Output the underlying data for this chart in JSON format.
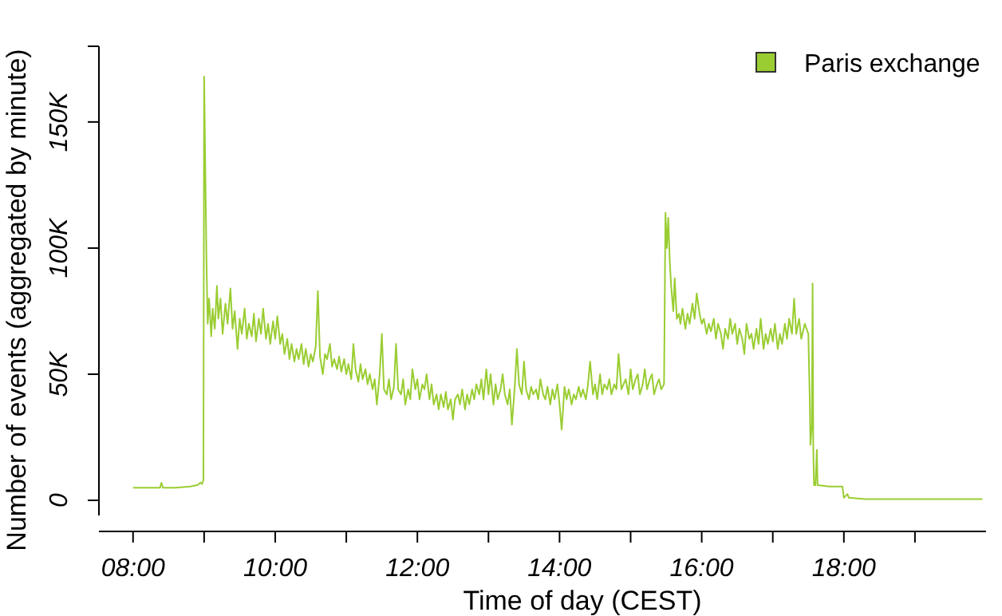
{
  "chart_data": {
    "type": "line",
    "xlabel": "Time of day (CEST)",
    "ylabel": "Number of events (aggregated by minute)",
    "xlim": [
      7.52,
      20.0
    ],
    "ylim": [
      -6000,
      180000
    ],
    "xticks": [
      {
        "value": 8,
        "label": "08:00"
      },
      {
        "value": 9,
        "label": null
      },
      {
        "value": 10,
        "label": "10:00"
      },
      {
        "value": 11,
        "label": null
      },
      {
        "value": 12,
        "label": "12:00"
      },
      {
        "value": 13,
        "label": null
      },
      {
        "value": 14,
        "label": "14:00"
      },
      {
        "value": 15,
        "label": null
      },
      {
        "value": 16,
        "label": "16:00"
      },
      {
        "value": 17,
        "label": null
      },
      {
        "value": 18,
        "label": "18:00"
      },
      {
        "value": 19,
        "label": null
      }
    ],
    "yticks": [
      0,
      {
        "value": 50000,
        "label": "50K"
      },
      {
        "value": 100000,
        "label": "100K"
      },
      {
        "value": 150000,
        "label": "150K"
      },
      {
        "value": 180000,
        "label": null
      }
    ],
    "legend": "top right",
    "grid": false,
    "marker": "none",
    "line_style": "solid",
    "series": [
      {
        "name": "Paris exchange",
        "color": "#9acd32",
        "x": [
          8.0,
          8.2,
          8.38,
          8.4,
          8.42,
          8.6,
          8.8,
          8.9,
          8.95,
          8.97,
          8.99,
          9.0,
          9.017,
          9.033,
          9.05,
          9.07,
          9.1,
          9.12,
          9.15,
          9.18,
          9.2,
          9.23,
          9.26,
          9.3,
          9.33,
          9.37,
          9.4,
          9.43,
          9.47,
          9.5,
          9.53,
          9.57,
          9.6,
          9.63,
          9.67,
          9.7,
          9.73,
          9.77,
          9.8,
          9.83,
          9.87,
          9.9,
          9.93,
          9.97,
          10.0,
          10.03,
          10.07,
          10.1,
          10.13,
          10.17,
          10.2,
          10.23,
          10.27,
          10.3,
          10.33,
          10.37,
          10.4,
          10.43,
          10.47,
          10.5,
          10.53,
          10.57,
          10.6,
          10.63,
          10.67,
          10.7,
          10.73,
          10.77,
          10.8,
          10.83,
          10.87,
          10.9,
          10.93,
          10.97,
          11.0,
          11.03,
          11.07,
          11.1,
          11.13,
          11.17,
          11.2,
          11.23,
          11.27,
          11.3,
          11.33,
          11.37,
          11.4,
          11.43,
          11.47,
          11.5,
          11.53,
          11.57,
          11.6,
          11.63,
          11.67,
          11.7,
          11.73,
          11.77,
          11.8,
          11.83,
          11.87,
          11.9,
          11.93,
          11.97,
          12.0,
          12.03,
          12.07,
          12.1,
          12.13,
          12.17,
          12.2,
          12.23,
          12.27,
          12.3,
          12.33,
          12.37,
          12.4,
          12.43,
          12.47,
          12.5,
          12.53,
          12.57,
          12.6,
          12.63,
          12.67,
          12.7,
          12.73,
          12.77,
          12.8,
          12.83,
          12.87,
          12.9,
          12.93,
          12.97,
          13.0,
          13.03,
          13.07,
          13.1,
          13.13,
          13.17,
          13.2,
          13.23,
          13.27,
          13.3,
          13.33,
          13.37,
          13.4,
          13.43,
          13.47,
          13.5,
          13.53,
          13.57,
          13.6,
          13.63,
          13.67,
          13.7,
          13.73,
          13.77,
          13.8,
          13.83,
          13.87,
          13.9,
          13.93,
          13.97,
          14.0,
          14.03,
          14.07,
          14.1,
          14.13,
          14.17,
          14.2,
          14.23,
          14.27,
          14.3,
          14.33,
          14.37,
          14.4,
          14.43,
          14.47,
          14.5,
          14.53,
          14.57,
          14.6,
          14.63,
          14.67,
          14.7,
          14.73,
          14.77,
          14.8,
          14.83,
          14.87,
          14.9,
          14.93,
          14.97,
          15.0,
          15.03,
          15.07,
          15.1,
          15.13,
          15.17,
          15.2,
          15.23,
          15.27,
          15.3,
          15.33,
          15.37,
          15.4,
          15.43,
          15.47,
          15.49,
          15.51,
          15.53,
          15.55,
          15.57,
          15.6,
          15.62,
          15.65,
          15.68,
          15.7,
          15.73,
          15.77,
          15.8,
          15.83,
          15.87,
          15.9,
          15.93,
          15.97,
          16.0,
          16.03,
          16.07,
          16.1,
          16.13,
          16.17,
          16.2,
          16.23,
          16.27,
          16.3,
          16.33,
          16.37,
          16.4,
          16.43,
          16.47,
          16.5,
          16.53,
          16.57,
          16.6,
          16.63,
          16.67,
          16.7,
          16.73,
          16.77,
          16.8,
          16.83,
          16.87,
          16.9,
          16.93,
          16.97,
          17.0,
          17.03,
          17.07,
          17.1,
          17.13,
          17.17,
          17.2,
          17.23,
          17.27,
          17.3,
          17.33,
          17.37,
          17.4,
          17.45,
          17.5,
          17.52,
          17.53,
          17.55,
          17.56,
          17.57,
          17.58,
          17.6,
          17.62,
          17.63,
          17.8,
          17.98,
          18.0,
          18.05,
          18.07,
          18.3,
          19.0,
          19.95
        ],
        "values": [
          5000,
          5000,
          5000,
          7000,
          5000,
          5000,
          5500,
          6000,
          7000,
          6500,
          8000,
          168000,
          130000,
          95000,
          70000,
          80000,
          65000,
          76000,
          68000,
          85000,
          72000,
          80000,
          66000,
          78000,
          70000,
          84000,
          68000,
          75000,
          60000,
          72000,
          66000,
          76000,
          64000,
          70000,
          65000,
          74000,
          63000,
          72000,
          66000,
          76000,
          64000,
          70000,
          62000,
          71000,
          64000,
          73000,
          62000,
          66000,
          58000,
          64000,
          56000,
          62000,
          55000,
          60000,
          56000,
          62000,
          54000,
          60000,
          53000,
          58000,
          55000,
          61000,
          83000,
          57000,
          50000,
          58000,
          56000,
          62000,
          53000,
          56000,
          52000,
          57000,
          51000,
          56000,
          50000,
          54000,
          48000,
          62000,
          52000,
          47000,
          54000,
          48000,
          52000,
          46000,
          50000,
          44000,
          48000,
          38000,
          50000,
          66000,
          44000,
          42000,
          48000,
          40000,
          45000,
          62000,
          44000,
          42000,
          48000,
          38000,
          44000,
          40000,
          52000,
          44000,
          48000,
          40000,
          46000,
          44000,
          50000,
          40000,
          46000,
          38000,
          42000,
          36000,
          42000,
          37000,
          43000,
          36000,
          40000,
          32000,
          40000,
          42000,
          38000,
          44000,
          36000,
          42000,
          38000,
          44000,
          40000,
          46000,
          42000,
          48000,
          40000,
          52000,
          42000,
          50000,
          38000,
          46000,
          40000,
          44000,
          50000,
          42000,
          38000,
          44000,
          30000,
          45000,
          60000,
          46000,
          42000,
          55000,
          44000,
          40000,
          45000,
          42000,
          44000,
          40000,
          48000,
          42000,
          40000,
          45000,
          38000,
          44000,
          40000,
          46000,
          38000,
          28000,
          45000,
          40000,
          44000,
          38000,
          42000,
          40000,
          45000,
          41000,
          44000,
          40000,
          46000,
          55000,
          42000,
          46000,
          40000,
          50000,
          42000,
          46000,
          44000,
          48000,
          42000,
          46000,
          44000,
          58000,
          44000,
          46000,
          48000,
          42000,
          52000,
          44000,
          48000,
          50000,
          42000,
          46000,
          52000,
          44000,
          48000,
          50000,
          42000,
          46000,
          48000,
          44000,
          46000,
          114000,
          100000,
          112000,
          95000,
          85000,
          75000,
          88000,
          72000,
          74000,
          70000,
          76000,
          68000,
          74000,
          70000,
          78000,
          72000,
          82000,
          74000,
          70000,
          72000,
          66000,
          70000,
          67000,
          72000,
          64000,
          70000,
          66000,
          60000,
          68000,
          64000,
          72000,
          66000,
          70000,
          62000,
          68000,
          64000,
          58000,
          70000,
          64000,
          66000,
          60000,
          68000,
          62000,
          72000,
          60000,
          66000,
          62000,
          68000,
          63000,
          70000,
          60000,
          66000,
          62000,
          70000,
          64000,
          72000,
          66000,
          80000,
          66000,
          72000,
          64000,
          70000,
          66000,
          40000,
          22000,
          30000,
          86000,
          20000,
          6000,
          6000,
          20000,
          6000,
          5500,
          5500,
          1000,
          2500,
          1000,
          500,
          500,
          500
        ]
      }
    ]
  }
}
